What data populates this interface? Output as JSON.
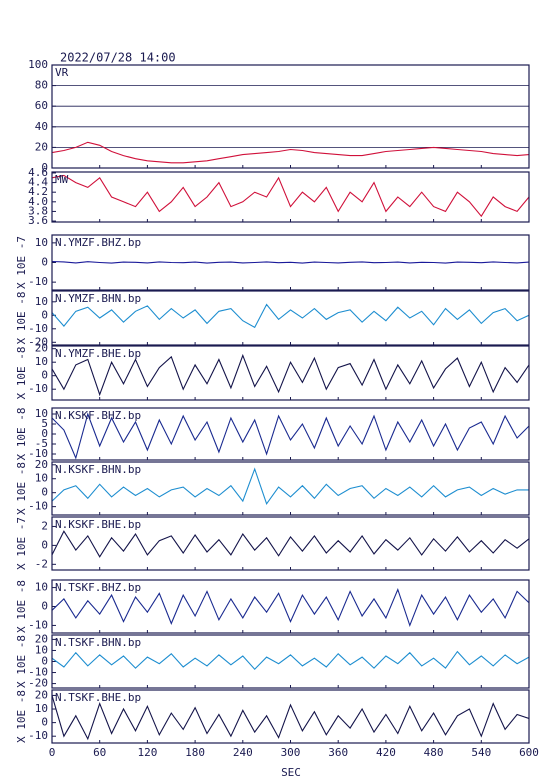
{
  "title": "2022/07/28 14:00",
  "x_axis": {
    "label": "SEC",
    "xlim": [
      0,
      600
    ],
    "xticks": [
      0,
      60,
      120,
      180,
      240,
      300,
      360,
      420,
      480,
      540,
      600
    ],
    "x": [
      0,
      15,
      30,
      45,
      60,
      75,
      90,
      105,
      120,
      135,
      150,
      165,
      180,
      195,
      210,
      225,
      240,
      255,
      270,
      285,
      300,
      315,
      330,
      345,
      360,
      375,
      390,
      405,
      420,
      435,
      450,
      465,
      480,
      495,
      510,
      525,
      540,
      555,
      570,
      585,
      600
    ]
  },
  "chart_data": [
    {
      "type": "line",
      "name": "VR",
      "ylim": [
        0,
        100
      ],
      "yticks": [
        0,
        20,
        40,
        60,
        80,
        100
      ],
      "grid": true,
      "color": "#d0103a",
      "values": [
        15,
        17,
        20,
        25,
        22,
        16,
        12,
        9,
        7,
        6,
        5,
        5,
        6,
        7,
        9,
        11,
        13,
        14,
        15,
        16,
        18,
        17,
        15,
        14,
        13,
        12,
        12,
        14,
        16,
        17,
        18,
        19,
        20,
        19,
        18,
        17,
        16,
        14,
        13,
        12,
        13
      ]
    },
    {
      "type": "line",
      "name": "MW",
      "ylim": [
        3.58,
        4.62
      ],
      "yticks": [
        {
          "value": 3.6,
          "label": "3.6"
        },
        {
          "value": 3.8,
          "label": "3.8"
        },
        {
          "value": 4,
          "label": "4.0"
        },
        {
          "value": 4.2,
          "label": "4.2"
        },
        {
          "value": 4.4,
          "label": "4.4"
        },
        {
          "value": 4.6,
          "label": "4.6"
        }
      ],
      "grid": false,
      "color": "#d0103a",
      "values": [
        4.5,
        4.55,
        4.4,
        4.3,
        4.5,
        4.1,
        4.0,
        3.9,
        4.2,
        3.8,
        4.0,
        4.3,
        3.9,
        4.1,
        4.4,
        3.9,
        4.0,
        4.2,
        4.1,
        4.5,
        3.9,
        4.2,
        4.0,
        4.3,
        3.8,
        4.2,
        4.0,
        4.4,
        3.8,
        4.1,
        3.9,
        4.2,
        3.9,
        3.8,
        4.2,
        4.0,
        3.7,
        4.1,
        3.9,
        3.8,
        4.1
      ]
    },
    {
      "type": "line",
      "name": "N.YMZF.BHZ.bp",
      "y_label": "X 10E -7",
      "ylim": [
        -14,
        14
      ],
      "yticks": [
        -10,
        0,
        10
      ],
      "grid": false,
      "color": "#1a1a9a",
      "values": [
        0.5,
        0.3,
        -0.2,
        0.4,
        0,
        -0.3,
        0.2,
        0.1,
        -0.2,
        0.3,
        0,
        -0.1,
        0.2,
        -0.3,
        0.1,
        0.2,
        -0.2,
        0,
        0.3,
        -0.1,
        0.1,
        -0.3,
        0.2,
        0,
        -0.2,
        0.1,
        0.3,
        -0.1,
        0,
        0.2,
        -0.2,
        0.1,
        0,
        -0.3,
        0.2,
        0.1,
        -0.1,
        0.3,
        0,
        -0.2,
        0.2
      ]
    },
    {
      "type": "line",
      "name": "N.YMZF.BHN.bp",
      "y_label": "X 10E -8",
      "ylim": [
        -22,
        18
      ],
      "yticks": [
        -20,
        -10,
        0,
        10
      ],
      "grid": false,
      "color": "#1e8ed0",
      "values": [
        2,
        -8,
        3,
        6,
        -2,
        4,
        -5,
        3,
        7,
        -3,
        5,
        -2,
        4,
        -6,
        3,
        5,
        -4,
        -9,
        8,
        -3,
        4,
        -2,
        5,
        -3,
        2,
        4,
        -5,
        3,
        -4,
        6,
        -2,
        3,
        -7,
        5,
        -3,
        4,
        -6,
        2,
        5,
        -4,
        0
      ]
    },
    {
      "type": "line",
      "name": "N.YMZF.BHE.bp",
      "y_label": "X 10E -8",
      "ylim": [
        -18,
        22
      ],
      "yticks": [
        -10,
        0,
        10,
        20
      ],
      "grid": false,
      "color": "#14144a",
      "values": [
        5,
        -10,
        8,
        12,
        -14,
        10,
        -6,
        12,
        -8,
        6,
        14,
        -10,
        8,
        -6,
        12,
        -9,
        15,
        -8,
        7,
        -12,
        10,
        -5,
        13,
        -10,
        6,
        9,
        -7,
        12,
        -10,
        8,
        -6,
        11,
        -9,
        5,
        13,
        -8,
        10,
        -12,
        6,
        -5,
        8
      ]
    },
    {
      "type": "line",
      "name": "N.KSKF.BHZ.bp",
      "y_label": "X 10E -8",
      "ylim": [
        -13,
        13
      ],
      "yticks": [
        -10,
        -5,
        0,
        5,
        10
      ],
      "grid": false,
      "color": "#1a2a90",
      "values": [
        8,
        2,
        -12,
        10,
        -6,
        8,
        -4,
        6,
        -8,
        7,
        -5,
        9,
        -3,
        6,
        -9,
        8,
        -4,
        7,
        -10,
        9,
        -3,
        5,
        -7,
        8,
        -6,
        4,
        -5,
        9,
        -8,
        6,
        -4,
        7,
        -6,
        5,
        -8,
        3,
        6,
        -5,
        9,
        -2,
        4
      ]
    },
    {
      "type": "line",
      "name": "N.KSKF.BHN.bp",
      "y_label": "X 10E -8",
      "ylim": [
        -16,
        22
      ],
      "yticks": [
        -10,
        0,
        10,
        20
      ],
      "grid": false,
      "color": "#1e8ed0",
      "values": [
        -6,
        2,
        5,
        -4,
        6,
        -3,
        4,
        -2,
        3,
        -3,
        2,
        4,
        -3,
        3,
        -2,
        5,
        -6,
        17,
        -8,
        4,
        -3,
        5,
        -4,
        6,
        -2,
        3,
        5,
        -4,
        3,
        -2,
        4,
        -3,
        5,
        -3,
        2,
        4,
        -2,
        3,
        -1,
        2,
        2
      ]
    },
    {
      "type": "line",
      "name": "N.KSKF.BHE.bp",
      "y_label": "X 10E -7",
      "ylim": [
        -2.6,
        3
      ],
      "yticks": [
        -2,
        0,
        2
      ],
      "grid": false,
      "color": "#14144a",
      "values": [
        -1,
        1.5,
        -0.5,
        1,
        -1.2,
        0.8,
        -0.6,
        1.2,
        -1,
        0.5,
        1,
        -0.8,
        1.1,
        -0.7,
        0.6,
        -1,
        1.2,
        -0.5,
        0.8,
        -1.1,
        0.9,
        -0.6,
        1,
        -0.8,
        0.5,
        -0.7,
        1,
        -0.9,
        0.6,
        -0.5,
        0.8,
        -1,
        0.7,
        -0.6,
        0.9,
        -0.7,
        0.5,
        -0.8,
        0.6,
        -0.3,
        0.7
      ]
    },
    {
      "type": "line",
      "name": "N.TSKF.BHZ.bp",
      "y_label": "X 10E -8",
      "ylim": [
        -14,
        14
      ],
      "yticks": [
        -10,
        0,
        10
      ],
      "grid": false,
      "color": "#1a2a90",
      "values": [
        -2,
        4,
        -6,
        3,
        -4,
        6,
        -8,
        5,
        -3,
        7,
        -9,
        6,
        -5,
        8,
        -7,
        4,
        -6,
        5,
        -3,
        7,
        -8,
        6,
        -4,
        5,
        -7,
        8,
        -5,
        4,
        -6,
        9,
        -10,
        6,
        -4,
        5,
        -7,
        6,
        -3,
        4,
        -6,
        8,
        2
      ]
    },
    {
      "type": "line",
      "name": "N.TSKF.BHN.bp",
      "y_label": "X 10E -8",
      "ylim": [
        -24,
        24
      ],
      "yticks": [
        -20,
        -10,
        0,
        10,
        20
      ],
      "grid": false,
      "color": "#1e8ed0",
      "values": [
        3,
        -5,
        8,
        -4,
        6,
        -3,
        5,
        -6,
        4,
        -2,
        7,
        -5,
        3,
        -4,
        6,
        -3,
        5,
        -7,
        4,
        -2,
        6,
        -4,
        3,
        -5,
        7,
        -3,
        4,
        -6,
        5,
        -2,
        8,
        -4,
        3,
        -6,
        9,
        -3,
        5,
        -4,
        6,
        -2,
        4
      ]
    },
    {
      "type": "line",
      "name": "N.TSKF.BHE.bp",
      "y_label": "X 10E -8",
      "ylim": [
        -15,
        24
      ],
      "yticks": [
        -10,
        0,
        10,
        20
      ],
      "grid": false,
      "color": "#14144a",
      "values": [
        20,
        -10,
        5,
        -12,
        14,
        -8,
        10,
        -6,
        12,
        -9,
        7,
        -5,
        11,
        -8,
        6,
        -10,
        9,
        -7,
        5,
        -11,
        13,
        -6,
        8,
        -9,
        5,
        -4,
        10,
        -7,
        6,
        -8,
        12,
        -6,
        7,
        -9,
        5,
        10,
        -10,
        14,
        -5,
        6,
        3
      ]
    }
  ]
}
